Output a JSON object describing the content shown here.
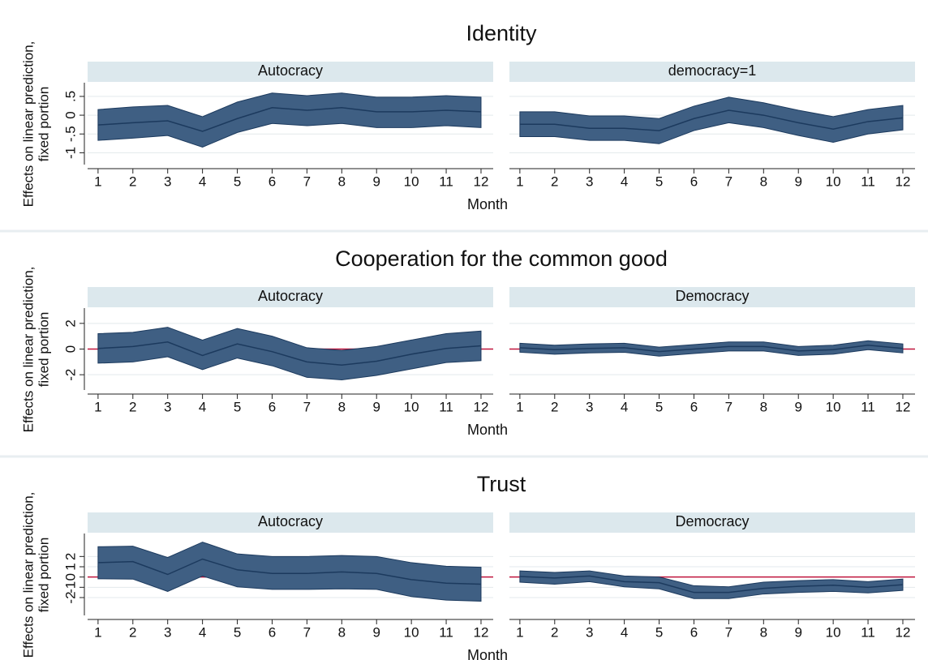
{
  "chart_data": [
    {
      "type": "band",
      "title": "Identity",
      "xlabel": "Month",
      "ylabel": [
        "Effects on linear prediction,",
        "fixed portion"
      ],
      "x": [
        1,
        2,
        3,
        4,
        5,
        6,
        7,
        8,
        9,
        10,
        11,
        12
      ],
      "xticks": [
        1,
        2,
        3,
        4,
        5,
        6,
        7,
        8,
        9,
        10,
        11,
        12
      ],
      "xlim": [
        0.7,
        12.35
      ],
      "ylim": [
        -1.25,
        0.8
      ],
      "yticks": [
        -1,
        {
          "value": -0.5,
          "label": "-.5"
        },
        0,
        {
          "value": 0.5,
          "label": ".5"
        }
      ],
      "grid": true,
      "band_color": "#3f5f83",
      "line_color": "#1c3a5e",
      "panels": [
        {
          "name": "Autocracy",
          "upper": [
            0.15,
            0.22,
            0.26,
            -0.04,
            0.35,
            0.59,
            0.52,
            0.59,
            0.48,
            0.48,
            0.52,
            0.48
          ],
          "estimate": [
            -0.26,
            -0.2,
            -0.15,
            -0.43,
            -0.09,
            0.2,
            0.13,
            0.2,
            0.09,
            0.09,
            0.13,
            0.09
          ],
          "lower": [
            -0.67,
            -0.61,
            -0.54,
            -0.85,
            -0.46,
            -0.22,
            -0.28,
            -0.22,
            -0.33,
            -0.33,
            -0.28,
            -0.33
          ]
        },
        {
          "name": "democracy=1",
          "upper": [
            0.09,
            0.09,
            -0.02,
            -0.02,
            -0.09,
            0.24,
            0.48,
            0.33,
            0.13,
            -0.04,
            0.15,
            0.26
          ],
          "estimate": [
            -0.24,
            -0.24,
            -0.35,
            -0.35,
            -0.41,
            -0.09,
            0.13,
            0,
            -0.2,
            -0.37,
            -0.17,
            -0.07
          ],
          "lower": [
            -0.57,
            -0.57,
            -0.67,
            -0.67,
            -0.76,
            -0.41,
            -0.2,
            -0.33,
            -0.54,
            -0.72,
            -0.5,
            -0.39
          ]
        }
      ]
    },
    {
      "type": "band",
      "title": "Cooperation for the common good",
      "xlabel": "Month",
      "ylabel": [
        "Effects on linear prediction,",
        "fixed portion"
      ],
      "x": [
        1,
        2,
        3,
        4,
        5,
        6,
        7,
        8,
        9,
        10,
        11,
        12
      ],
      "xticks": [
        1,
        2,
        3,
        4,
        5,
        6,
        7,
        8,
        9,
        10,
        11,
        12
      ],
      "xlim": [
        0.7,
        12.35
      ],
      "ylim": [
        -3,
        3
      ],
      "yticks": [
        -2,
        0,
        2
      ],
      "grid": true,
      "reference_line": 0,
      "reference_color": "#c0143c",
      "band_color": "#3f5f83",
      "line_color": "#1c3a5e",
      "panels": [
        {
          "name": "Autocracy",
          "upper": [
            1.2,
            1.3,
            1.7,
            0.7,
            1.6,
            1.0,
            0.1,
            -0.1,
            0.2,
            0.7,
            1.2,
            1.4
          ],
          "estimate": [
            0.05,
            0.2,
            0.55,
            -0.5,
            0.4,
            -0.2,
            -1.0,
            -1.25,
            -0.95,
            -0.4,
            0.05,
            0.25
          ],
          "lower": [
            -1.1,
            -1.0,
            -0.6,
            -1.6,
            -0.7,
            -1.3,
            -2.2,
            -2.4,
            -2.05,
            -1.55,
            -1.05,
            -0.9
          ]
        },
        {
          "name": "Democracy",
          "upper": [
            0.45,
            0.3,
            0.4,
            0.45,
            0.15,
            0.35,
            0.55,
            0.55,
            0.2,
            0.3,
            0.65,
            0.4
          ],
          "estimate": [
            0.1,
            -0.05,
            0.05,
            0.1,
            -0.2,
            0,
            0.2,
            0.2,
            -0.15,
            -0.05,
            0.3,
            0.05
          ],
          "lower": [
            -0.25,
            -0.4,
            -0.3,
            -0.25,
            -0.55,
            -0.35,
            -0.15,
            -0.15,
            -0.5,
            -0.4,
            -0.05,
            -0.3
          ]
        }
      ]
    },
    {
      "type": "band",
      "title": "Trust",
      "xlabel": "Month",
      "ylabel": [
        "Effects on linear prediction,",
        "fixed portion"
      ],
      "x": [
        1,
        2,
        3,
        4,
        5,
        6,
        7,
        8,
        9,
        10,
        11,
        12
      ],
      "xticks": [
        1,
        2,
        3,
        4,
        5,
        6,
        7,
        8,
        9,
        10,
        11,
        12
      ],
      "xlim": [
        0.7,
        12.35
      ],
      "ylim": [
        -3.5,
        4
      ],
      "yticks": [
        -2,
        -1,
        0,
        1,
        2
      ],
      "grid": true,
      "reference_line": 0,
      "reference_color": "#c0143c",
      "band_color": "#3f5f83",
      "line_color": "#1c3a5e",
      "panels": [
        {
          "name": "Autocracy",
          "upper": [
            2.95,
            3.0,
            1.9,
            3.4,
            2.25,
            2.0,
            2.0,
            2.1,
            2.0,
            1.4,
            1.05,
            0.95
          ],
          "estimate": [
            1.4,
            1.5,
            0.25,
            1.75,
            0.7,
            0.35,
            0.35,
            0.5,
            0.35,
            -0.25,
            -0.6,
            -0.7
          ],
          "lower": [
            -0.17,
            -0.2,
            -1.4,
            0.1,
            -0.95,
            -1.2,
            -1.2,
            -1.15,
            -1.2,
            -1.9,
            -2.25,
            -2.35
          ]
        },
        {
          "name": "Democracy",
          "upper": [
            0.6,
            0.45,
            0.6,
            0.1,
            0,
            -0.85,
            -0.95,
            -0.5,
            -0.35,
            -0.25,
            -0.45,
            -0.2
          ],
          "estimate": [
            0.05,
            -0.1,
            0.1,
            -0.45,
            -0.55,
            -1.5,
            -1.5,
            -1.1,
            -0.9,
            -0.8,
            -1.0,
            -0.75
          ],
          "lower": [
            -0.5,
            -0.7,
            -0.45,
            -0.95,
            -1.15,
            -2.1,
            -2.1,
            -1.65,
            -1.5,
            -1.4,
            -1.55,
            -1.3
          ]
        }
      ]
    }
  ]
}
